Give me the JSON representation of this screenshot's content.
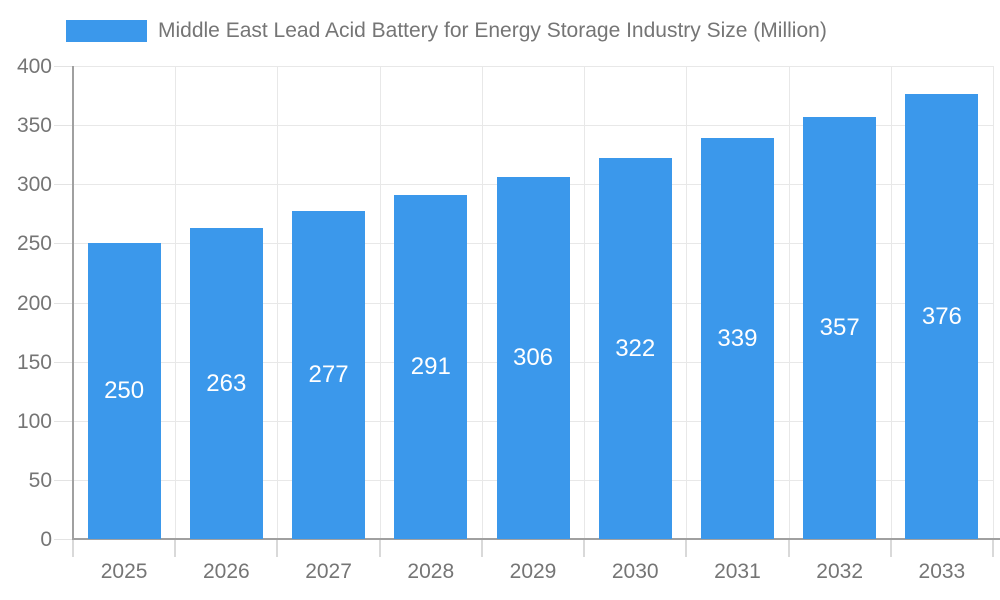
{
  "chart_data": {
    "type": "bar",
    "title": "Middle East Lead Acid Battery for Energy Storage Industry Size (Million)",
    "categories": [
      "2025",
      "2026",
      "2027",
      "2028",
      "2029",
      "2030",
      "2031",
      "2032",
      "2033"
    ],
    "values": [
      250,
      263,
      277,
      291,
      306,
      322,
      339,
      357,
      376
    ],
    "yticks": [
      0,
      50,
      100,
      150,
      200,
      250,
      300,
      350,
      400
    ],
    "ylim": [
      0,
      400
    ],
    "xlabel": "",
    "ylabel": "",
    "grid": true,
    "legend_position": "top-left",
    "bar_color": "#3B98EB",
    "bar_label_color": "#FFFFFF",
    "axis_text_color": "#757575",
    "gridline_color": "#E8E8E8",
    "axis_line_color": "#A0A0A0",
    "background_color": "#FFFFFF"
  }
}
